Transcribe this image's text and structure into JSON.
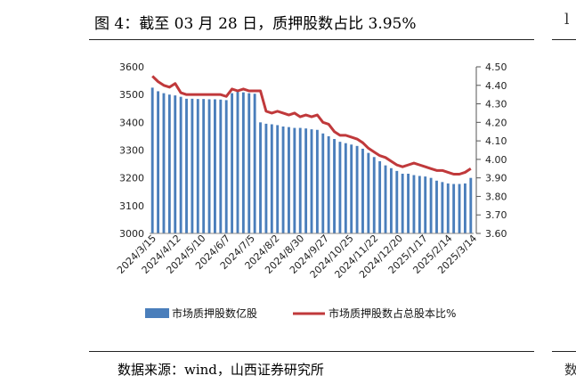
{
  "figure": {
    "title": "图 4：截至 03 月 28 日，质押股数占比 3.95%",
    "source": "数据来源：wind，山西证券研究所",
    "right_edge_glyphs": [
      "l",
      "数"
    ]
  },
  "chart_data": {
    "type": "bar+line",
    "x_tick_labels": [
      "2024/3/15",
      "2024/4/12",
      "2024/5/10",
      "2024/6/7",
      "2024/7/5",
      "2024/8/2",
      "2024/8/30",
      "2024/9/27",
      "2024/10/25",
      "2024/11/22",
      "2024/12/20",
      "2025/1/17",
      "2025/2/14",
      "2025/3/14"
    ],
    "y_left": {
      "min": 3000,
      "max": 3600,
      "ticks": [
        3000,
        3100,
        3200,
        3300,
        3400,
        3500,
        3600
      ]
    },
    "y_right": {
      "min": 3.6,
      "max": 4.5,
      "ticks": [
        "3.60",
        "3.70",
        "3.80",
        "3.90",
        "4.00",
        "4.10",
        "4.20",
        "4.30",
        "4.40",
        "4.50"
      ]
    },
    "series": [
      {
        "name": "市场质押股数亿股",
        "type": "bar",
        "axis": "left",
        "color": "#4a7ebb",
        "values": [
          3525,
          3512,
          3505,
          3500,
          3497,
          3492,
          3485,
          3485,
          3484,
          3484,
          3483,
          3483,
          3482,
          3480,
          3505,
          3510,
          3508,
          3505,
          3503,
          3400,
          3395,
          3393,
          3390,
          3385,
          3383,
          3380,
          3380,
          3378,
          3375,
          3373,
          3360,
          3350,
          3340,
          3330,
          3325,
          3320,
          3315,
          3305,
          3290,
          3275,
          3260,
          3245,
          3235,
          3225,
          3215,
          3215,
          3210,
          3207,
          3205,
          3200,
          3190,
          3185,
          3180,
          3178,
          3178,
          3180,
          3200
        ]
      },
      {
        "name": "市场质押股数占总股本比%",
        "type": "line",
        "axis": "right",
        "color": "#c0393b",
        "values": [
          4.45,
          4.42,
          4.4,
          4.39,
          4.41,
          4.36,
          4.35,
          4.35,
          4.35,
          4.35,
          4.35,
          4.35,
          4.35,
          4.34,
          4.38,
          4.37,
          4.38,
          4.37,
          4.37,
          4.37,
          4.26,
          4.25,
          4.26,
          4.25,
          4.24,
          4.25,
          4.23,
          4.24,
          4.23,
          4.24,
          4.2,
          4.19,
          4.15,
          4.13,
          4.13,
          4.12,
          4.11,
          4.09,
          4.06,
          4.04,
          4.02,
          4.01,
          3.99,
          3.97,
          3.96,
          3.97,
          3.98,
          3.97,
          3.96,
          3.95,
          3.94,
          3.94,
          3.93,
          3.92,
          3.92,
          3.93,
          3.95
        ]
      }
    ],
    "legend": {
      "placement": "bottom"
    },
    "grid": false
  }
}
